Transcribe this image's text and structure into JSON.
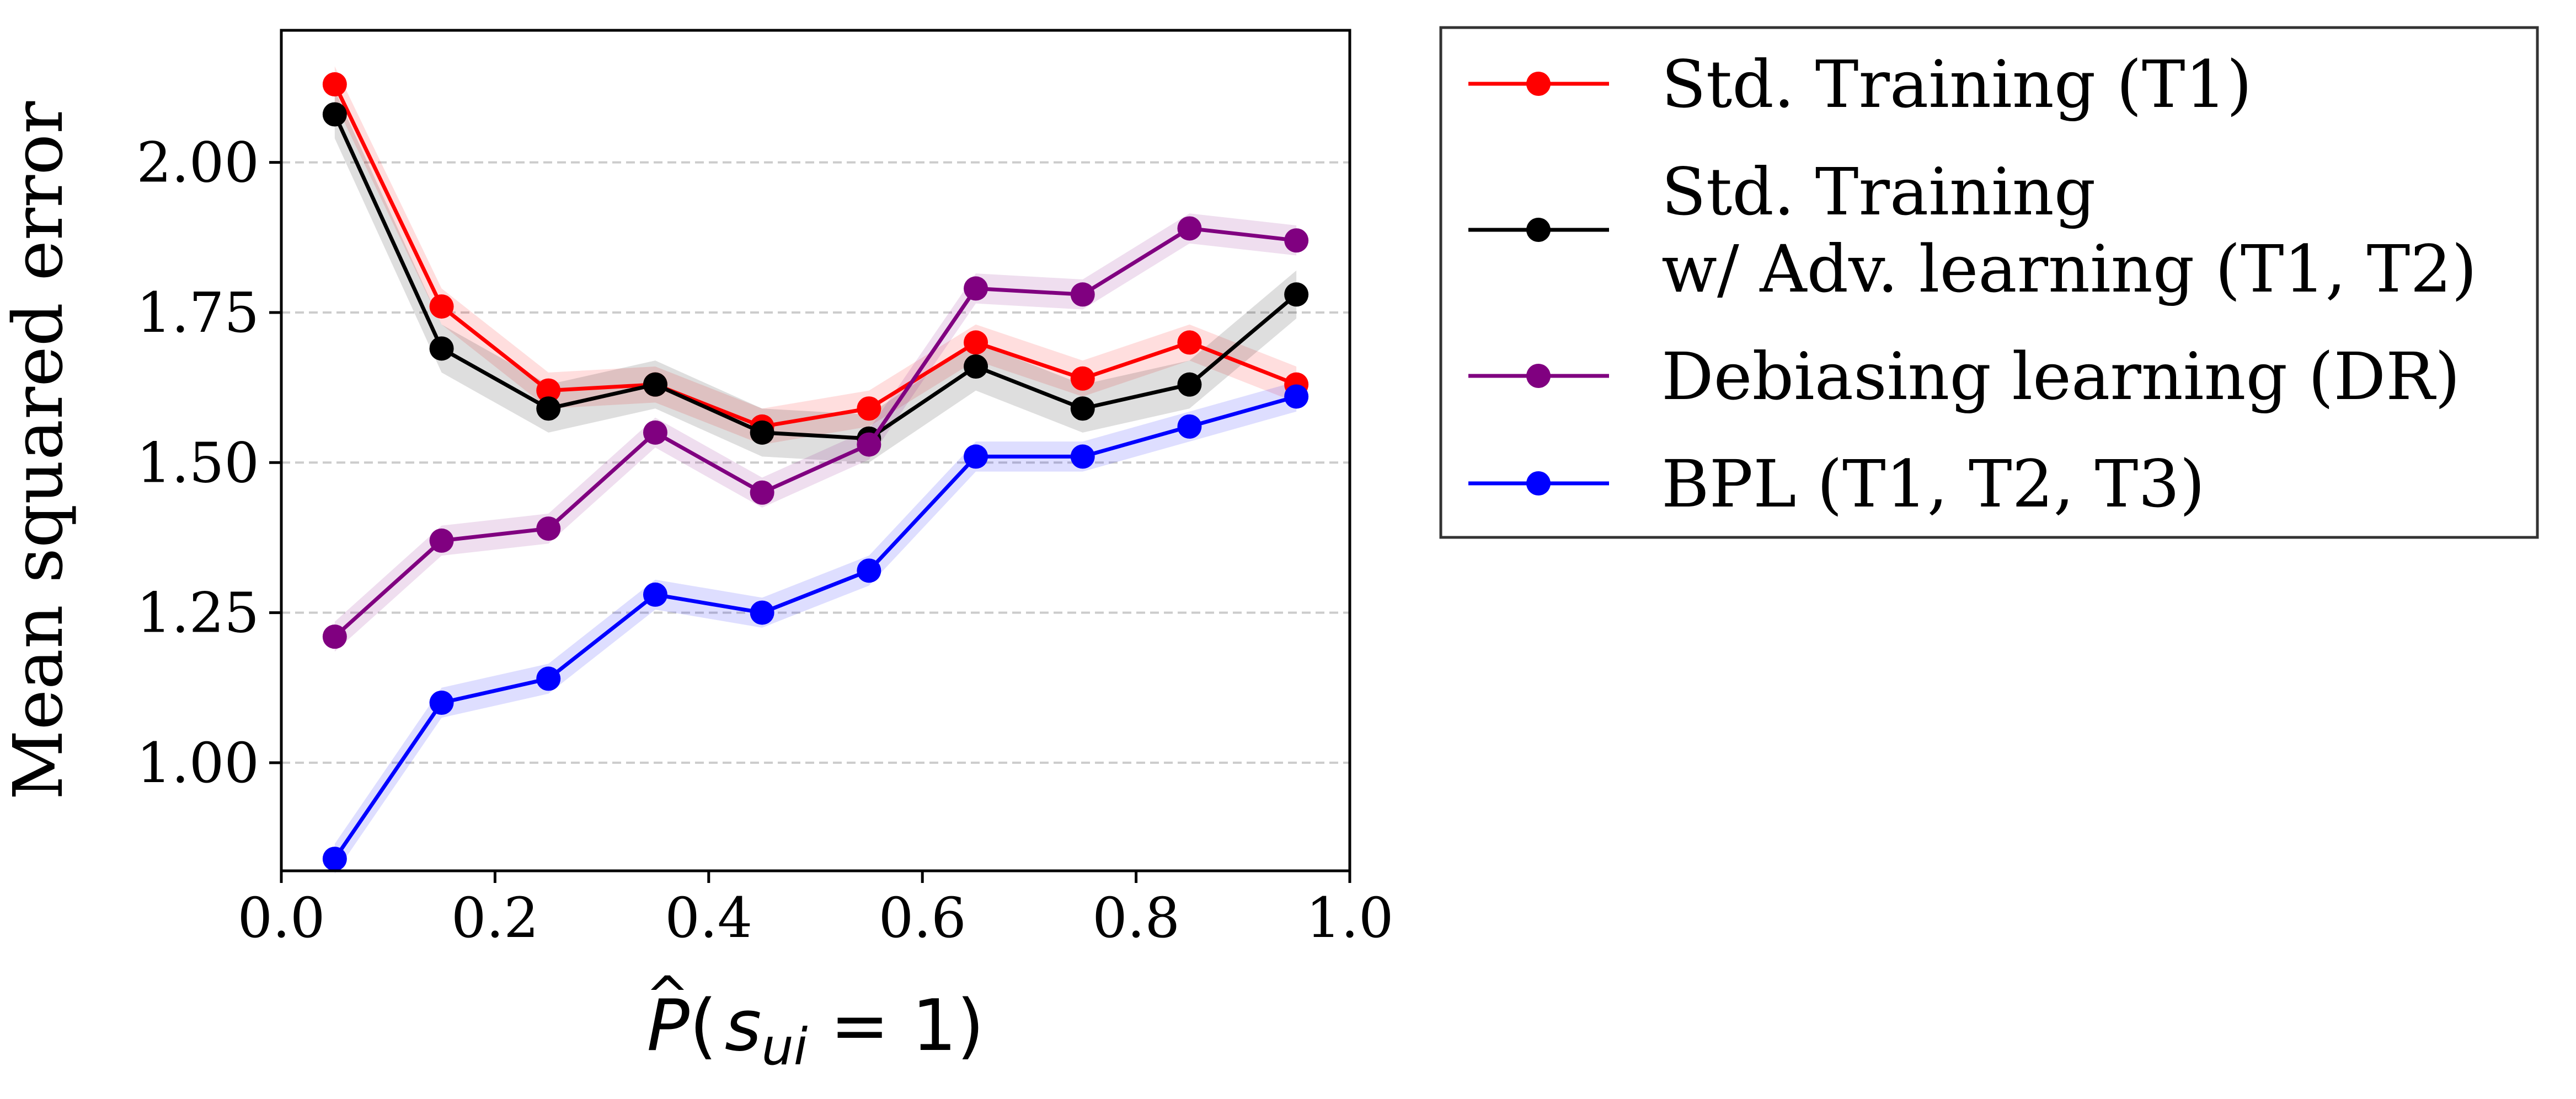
{
  "chart_data": {
    "type": "line",
    "title": "",
    "xlabel": {
      "prefix": "P",
      "hat": "^",
      "open": "(",
      "var": "s",
      "sub": "ui",
      "rest": " = 1)"
    },
    "ylabel": "Mean squared error",
    "xlim": [
      0.0,
      1.0
    ],
    "ylim": [
      0.82,
      2.22
    ],
    "xticks": [
      "0.0",
      "0.2",
      "0.4",
      "0.6",
      "0.8",
      "1.0"
    ],
    "xtick_values": [
      0.0,
      0.2,
      0.4,
      0.6,
      0.8,
      1.0
    ],
    "yticks": [
      "1.00",
      "1.25",
      "1.50",
      "1.75",
      "2.00"
    ],
    "ytick_values": [
      1.0,
      1.25,
      1.5,
      1.75,
      2.0
    ],
    "grid": "horizontal dashed",
    "legend_position": "outside-right-top",
    "x": [
      0.05,
      0.15,
      0.25,
      0.35,
      0.45,
      0.55,
      0.65,
      0.75,
      0.85,
      0.95
    ],
    "series": [
      {
        "name": "Std. Training (T1)",
        "legend_lines": [
          "Std. Training (T1)"
        ],
        "color": "#ff0000",
        "values": [
          2.13,
          1.76,
          1.62,
          1.63,
          1.56,
          1.59,
          1.7,
          1.64,
          1.7,
          1.63
        ],
        "band": 0.03
      },
      {
        "name": "Std. Training w/ Adv. learning (T1, T2)",
        "legend_lines": [
          "Std. Training",
          "w/ Adv. learning (T1, T2)"
        ],
        "color": "#000000",
        "values": [
          2.08,
          1.69,
          1.59,
          1.63,
          1.55,
          1.54,
          1.66,
          1.59,
          1.63,
          1.78
        ],
        "band": 0.04
      },
      {
        "name": "Debiasing learning (DR)",
        "legend_lines": [
          "Debiasing learning (DR)"
        ],
        "color": "#800080",
        "values": [
          1.21,
          1.37,
          1.39,
          1.55,
          1.45,
          1.53,
          1.79,
          1.78,
          1.89,
          1.87
        ],
        "band": 0.025
      },
      {
        "name": "BPL (T1, T2, T3)",
        "legend_lines": [
          "BPL (T1, T2, T3)"
        ],
        "color": "#0000ff",
        "values": [
          0.84,
          1.1,
          1.14,
          1.28,
          1.25,
          1.32,
          1.51,
          1.51,
          1.56,
          1.61
        ],
        "band": 0.025
      }
    ]
  }
}
